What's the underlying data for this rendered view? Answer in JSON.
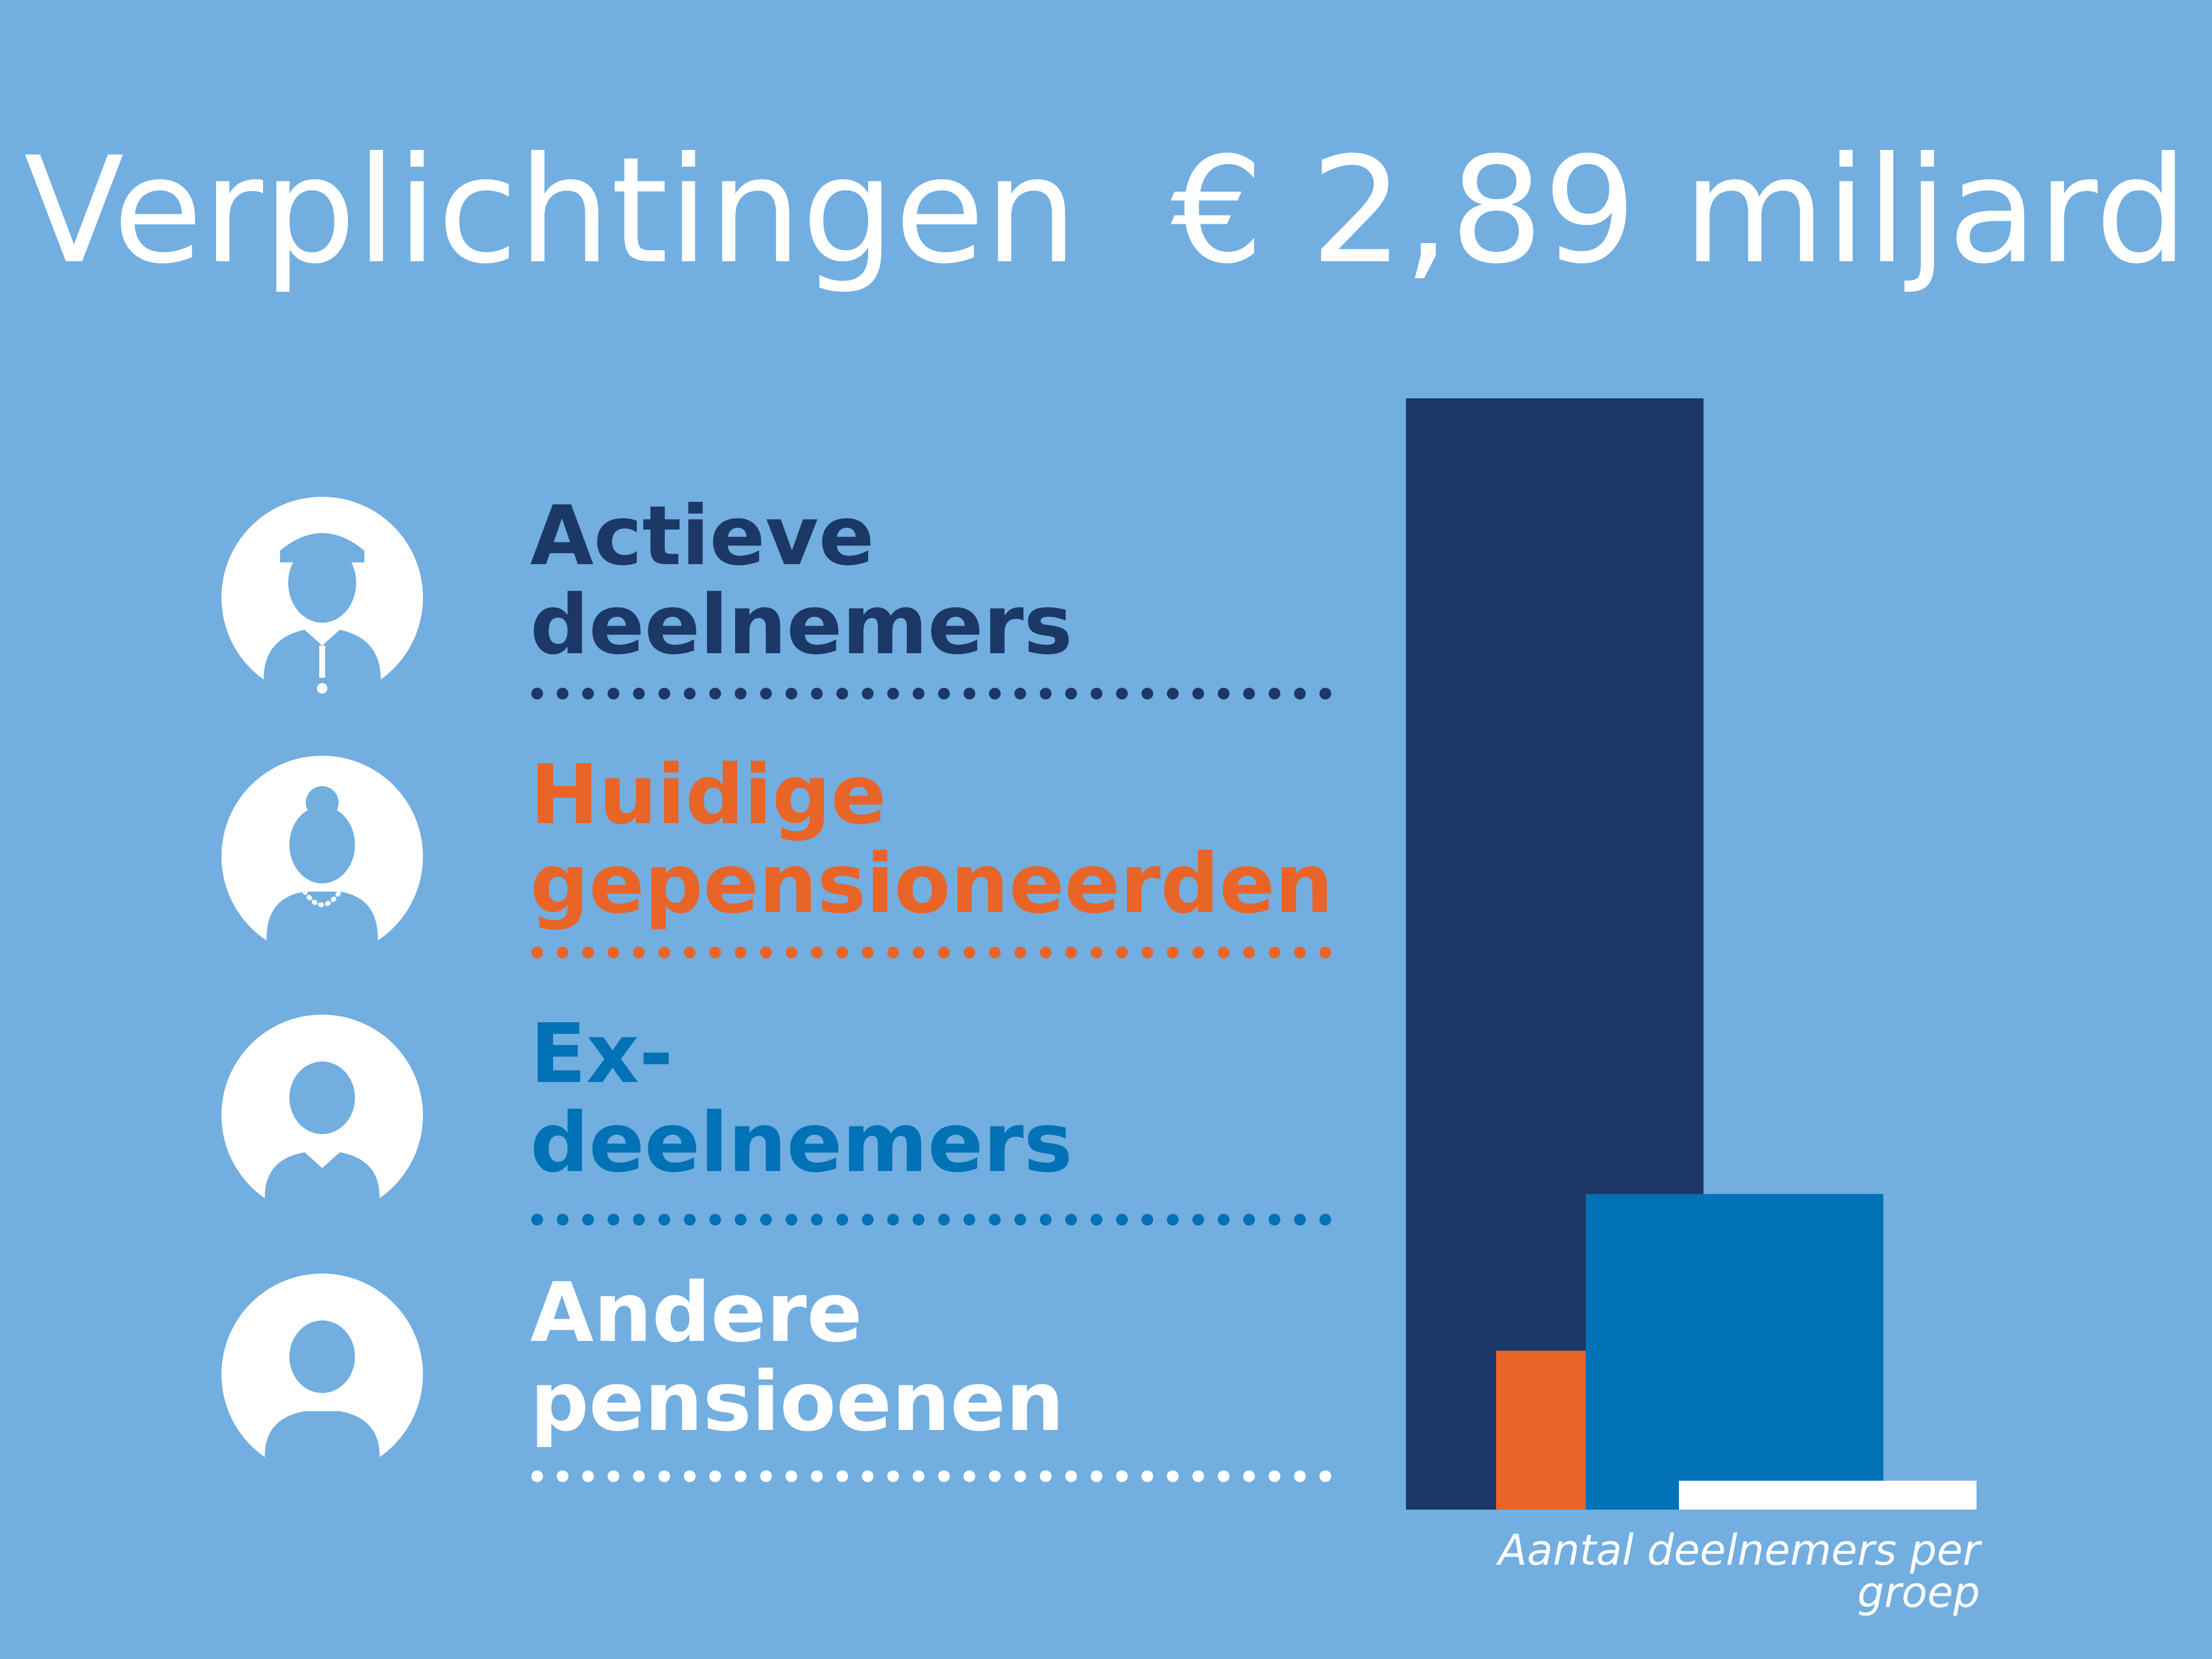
{
  "title": "Verplichtingen  € 2,89 miljard",
  "groups": [
    {
      "line1": "Actieve",
      "line2": "deelnemers",
      "color": "#1b3867",
      "icon": "male-worker-cap-icon"
    },
    {
      "line1": "Huidige",
      "line2": "gepensioneerden",
      "color": "#e96427",
      "icon": "retired-woman-icon"
    },
    {
      "line1": "Ex-",
      "line2": "deelnemers",
      "color": "#0072b5",
      "icon": "man-tie-icon"
    },
    {
      "line1": "Andere",
      "line2": "pensioenen",
      "color": "#ffffff",
      "icon": "person-icon"
    }
  ],
  "chart_data": {
    "type": "bar",
    "caption": "Aantal deelnemers per groep",
    "categories": [
      "Actieve deelnemers",
      "Huidige gepensioneerden",
      "Ex-deelnemers",
      "Andere pensioenen"
    ],
    "values": [
      100,
      14.3,
      28.4,
      2.6
    ],
    "colors": [
      "#1b3867",
      "#e96427",
      "#0072b5",
      "#ffffff"
    ]
  }
}
